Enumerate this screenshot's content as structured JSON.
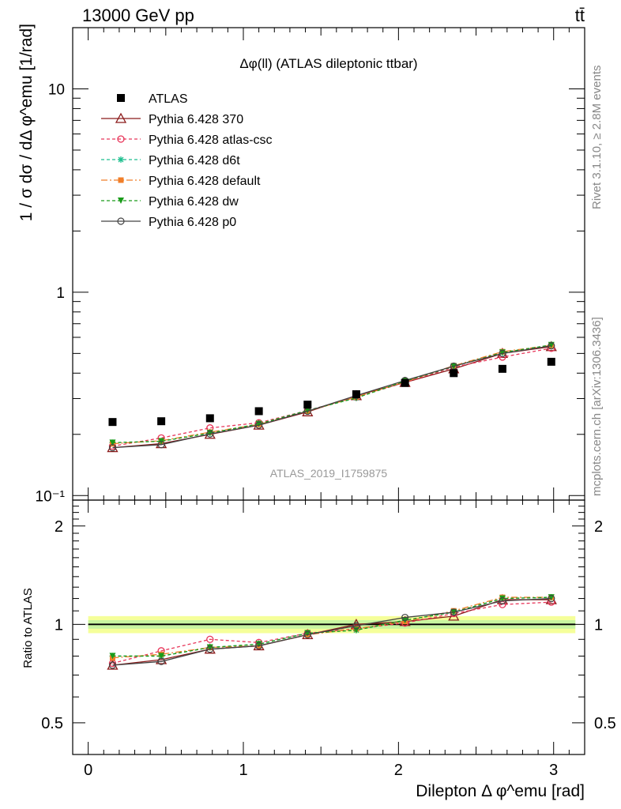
{
  "header": {
    "energy_label": "13000 GeV pp",
    "process_label": "tt̄",
    "rivet_label": "Rivet 3.1.10, ≥ 2.8M events",
    "mcplots_label": "mcplots.cern.ch [arXiv:1306.3436]"
  },
  "chart_data": [
    {
      "type": "line",
      "title": "Δφ(ll) (ATLAS dileptonic ttbar)",
      "watermark": "ATLAS_2019_I1759875",
      "ylabel": "1 / σ  dσ / dΔ φ^emu [1/rad]",
      "yscale": "log",
      "xlim": [
        -0.1,
        3.2
      ],
      "ylim": [
        0.095,
        20
      ],
      "y_tick_labels": [
        "10⁻¹",
        "1",
        "10"
      ],
      "x": [
        0.157,
        0.471,
        0.785,
        1.1,
        1.414,
        1.728,
        2.042,
        2.356,
        2.67,
        2.985
      ],
      "series": [
        {
          "name": "ATLAS",
          "marker": "square",
          "color": "#000000",
          "dash": "none",
          "values": [
            0.23,
            0.232,
            0.24,
            0.26,
            0.28,
            0.315,
            0.358,
            0.4,
            0.42,
            0.455
          ]
        },
        {
          "name": "Pythia 6.428 370",
          "marker": "triangle",
          "color": "#8b1a1a",
          "dash": "none",
          "values": [
            0.172,
            0.18,
            0.2,
            0.222,
            0.258,
            0.31,
            0.36,
            0.42,
            0.5,
            0.54
          ]
        },
        {
          "name": "Pythia 6.428 atlas-csc",
          "marker": "circle",
          "color": "#e8365a",
          "dash": "4,3",
          "values": [
            0.175,
            0.192,
            0.215,
            0.228,
            0.262,
            0.305,
            0.36,
            0.428,
            0.48,
            0.53
          ]
        },
        {
          "name": "Pythia 6.428 d6t",
          "marker": "star",
          "color": "#1fbf8f",
          "dash": "4,3",
          "values": [
            0.182,
            0.185,
            0.203,
            0.225,
            0.262,
            0.302,
            0.365,
            0.432,
            0.505,
            0.55
          ]
        },
        {
          "name": "Pythia 6.428 default",
          "marker": "filled-square",
          "color": "#f07f2a",
          "dash": "8,3,2,3",
          "values": [
            0.18,
            0.186,
            0.205,
            0.224,
            0.26,
            0.305,
            0.363,
            0.435,
            0.51,
            0.548
          ]
        },
        {
          "name": "Pythia 6.428 dw",
          "marker": "filled-triangle-down",
          "color": "#1a9c1a",
          "dash": "4,3",
          "values": [
            0.182,
            0.185,
            0.203,
            0.225,
            0.262,
            0.302,
            0.365,
            0.432,
            0.505,
            0.55
          ]
        },
        {
          "name": "Pythia 6.428 p0",
          "marker": "open-circle",
          "color": "#444444",
          "dash": "none",
          "values": [
            0.172,
            0.178,
            0.201,
            0.222,
            0.26,
            0.31,
            0.368,
            0.433,
            0.5,
            0.545
          ]
        }
      ]
    },
    {
      "type": "line",
      "xlabel": "Dilepton Δ φ^emu [rad]",
      "ylabel": "Ratio to ATLAS",
      "yscale": "log",
      "xlim": [
        -0.1,
        3.2
      ],
      "ylim": [
        0.4,
        2.4
      ],
      "x_ticks": [
        0,
        1,
        2,
        3
      ],
      "y_ticks": [
        0.5,
        1,
        2
      ],
      "band": {
        "inner": 0.03,
        "outer": 0.06
      },
      "reference_line": 1,
      "x": [
        0.157,
        0.471,
        0.785,
        1.1,
        1.414,
        1.728,
        2.042,
        2.356,
        2.67,
        2.985
      ],
      "series": [
        {
          "name": "Pythia 6.428 370",
          "values": [
            0.75,
            0.78,
            0.84,
            0.86,
            0.93,
            1.0,
            1.02,
            1.06,
            1.19,
            1.19
          ]
        },
        {
          "name": "Pythia 6.428 atlas-csc",
          "values": [
            0.76,
            0.83,
            0.9,
            0.88,
            0.94,
            0.97,
            1.01,
            1.08,
            1.15,
            1.17
          ]
        },
        {
          "name": "Pythia 6.428 d6t",
          "values": [
            0.8,
            0.8,
            0.85,
            0.87,
            0.94,
            0.96,
            1.03,
            1.09,
            1.2,
            1.21
          ]
        },
        {
          "name": "Pythia 6.428 default",
          "values": [
            0.79,
            0.81,
            0.85,
            0.86,
            0.93,
            0.97,
            1.02,
            1.1,
            1.21,
            1.21
          ]
        },
        {
          "name": "Pythia 6.428 dw",
          "values": [
            0.8,
            0.8,
            0.85,
            0.87,
            0.94,
            0.96,
            1.03,
            1.09,
            1.2,
            1.21
          ]
        },
        {
          "name": "Pythia 6.428 p0",
          "values": [
            0.75,
            0.77,
            0.84,
            0.86,
            0.93,
            0.99,
            1.05,
            1.09,
            1.18,
            1.2
          ]
        }
      ]
    }
  ]
}
